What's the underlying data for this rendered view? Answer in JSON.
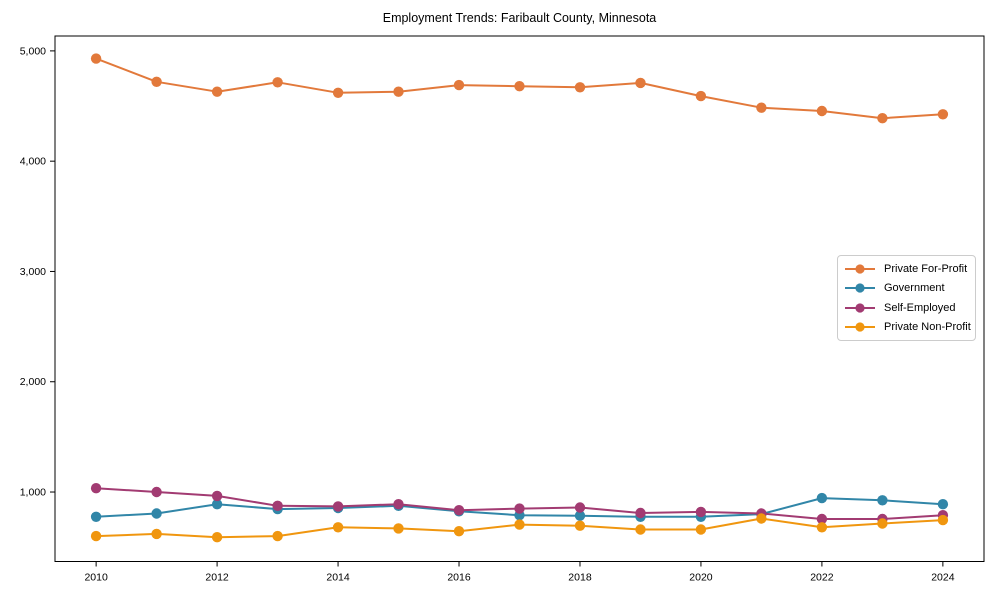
{
  "title": "Employment Trends: Faribault County, Minnesota",
  "colors": {
    "axis": "#000000",
    "tick_label": "#000000",
    "legend_border": "#cccccc",
    "background": "#ffffff",
    "private_for_profit": "#e2793b",
    "government": "#3186a8",
    "self_employed": "#a23b72",
    "private_non_profit": "#f0960f"
  },
  "chart_data": {
    "type": "line",
    "title": "Employment Trends: Faribault County, Minnesota",
    "xlabel": "",
    "ylabel": "",
    "x": [
      2010,
      2011,
      2012,
      2013,
      2014,
      2015,
      2016,
      2017,
      2018,
      2019,
      2020,
      2021,
      2022,
      2023,
      2024
    ],
    "x_ticks": [
      2010,
      2012,
      2014,
      2016,
      2018,
      2020,
      2022,
      2024
    ],
    "x_tick_labels": [
      "2010",
      "2012",
      "2014",
      "2016",
      "2018",
      "2020",
      "2022",
      "2024"
    ],
    "y_ticks": [
      1000,
      2000,
      3000,
      4000,
      5000
    ],
    "y_tick_labels": [
      "1,000",
      "2,000",
      "3,000",
      "4,000",
      "5,000"
    ],
    "xlim": [
      2009.32,
      2024.68
    ],
    "ylim": [
      370,
      5135
    ],
    "grid": false,
    "legend_position": "center-right",
    "marker": "circle",
    "series": [
      {
        "name": "Private For-Profit",
        "color": "#e2793b",
        "values": [
          4930,
          4720,
          4630,
          4715,
          4620,
          4630,
          4690,
          4680,
          4670,
          4710,
          4590,
          4485,
          4455,
          4390,
          4425
        ]
      },
      {
        "name": "Government",
        "color": "#3186a8",
        "values": [
          775,
          805,
          890,
          845,
          855,
          875,
          825,
          790,
          785,
          775,
          775,
          800,
          945,
          925,
          890
        ]
      },
      {
        "name": "Self-Employed",
        "color": "#a23b72",
        "values": [
          1035,
          1000,
          965,
          875,
          870,
          890,
          835,
          850,
          860,
          810,
          820,
          805,
          755,
          755,
          790
        ]
      },
      {
        "name": "Private Non-Profit",
        "color": "#f0960f",
        "values": [
          600,
          620,
          590,
          600,
          680,
          670,
          645,
          705,
          695,
          660,
          660,
          760,
          680,
          715,
          745
        ]
      }
    ]
  }
}
